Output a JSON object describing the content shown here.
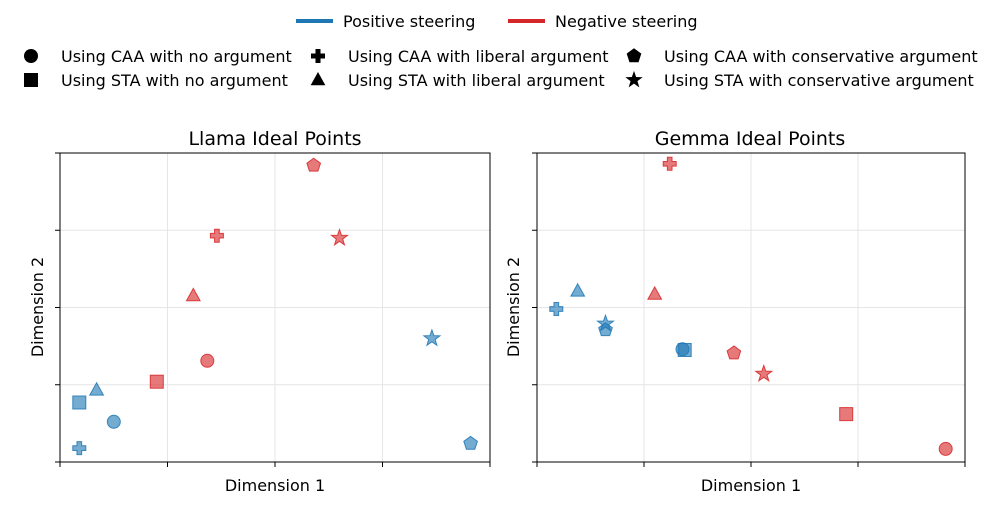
{
  "legend": {
    "colors": [
      {
        "label": "Positive steering",
        "color": "#1f77b4"
      },
      {
        "label": "Negative steering",
        "color": "#d62728"
      }
    ],
    "markers": [
      {
        "label": "Using CAA with no argument",
        "marker": "circle"
      },
      {
        "label": "Using CAA with liberal argument",
        "marker": "plus"
      },
      {
        "label": "Using CAA with conservative argument",
        "marker": "pentagon"
      },
      {
        "label": "Using STA with no argument",
        "marker": "square"
      },
      {
        "label": "Using STA with liberal argument",
        "marker": "triangle"
      },
      {
        "label": "Using STA with conservative argument",
        "marker": "star"
      }
    ]
  },
  "chart_data": [
    {
      "type": "scatter",
      "title": "Llama Ideal Points",
      "xlabel": "Dimension 1",
      "ylabel": "Dimension 2",
      "xlim": [
        0,
        4
      ],
      "ylim": [
        0,
        4
      ],
      "grid": true,
      "show_tick_labels": false,
      "points": [
        {
          "method": "CAA",
          "argument": "none",
          "steering": "positive",
          "x": 0.5,
          "y": 0.52
        },
        {
          "method": "CAA",
          "argument": "liberal",
          "steering": "positive",
          "x": 0.18,
          "y": 0.18
        },
        {
          "method": "CAA",
          "argument": "conservative",
          "steering": "positive",
          "x": 3.82,
          "y": 0.24
        },
        {
          "method": "STA",
          "argument": "none",
          "steering": "positive",
          "x": 0.18,
          "y": 0.77
        },
        {
          "method": "STA",
          "argument": "liberal",
          "steering": "positive",
          "x": 0.34,
          "y": 0.93
        },
        {
          "method": "STA",
          "argument": "conservative",
          "steering": "positive",
          "x": 3.46,
          "y": 1.6
        },
        {
          "method": "CAA",
          "argument": "none",
          "steering": "negative",
          "x": 1.37,
          "y": 1.31
        },
        {
          "method": "CAA",
          "argument": "liberal",
          "steering": "negative",
          "x": 1.46,
          "y": 2.93
        },
        {
          "method": "CAA",
          "argument": "conservative",
          "steering": "negative",
          "x": 2.36,
          "y": 3.84
        },
        {
          "method": "STA",
          "argument": "none",
          "steering": "negative",
          "x": 0.9,
          "y": 1.04
        },
        {
          "method": "STA",
          "argument": "liberal",
          "steering": "negative",
          "x": 1.24,
          "y": 2.15
        },
        {
          "method": "STA",
          "argument": "conservative",
          "steering": "negative",
          "x": 2.6,
          "y": 2.9
        }
      ]
    },
    {
      "type": "scatter",
      "title": "Gemma Ideal Points",
      "xlabel": "Dimension 1",
      "ylabel": "Dimension 2",
      "xlim": [
        0,
        4
      ],
      "ylim": [
        0,
        4
      ],
      "grid": true,
      "show_tick_labels": false,
      "points": [
        {
          "method": "CAA",
          "argument": "none",
          "steering": "positive",
          "x": 1.36,
          "y": 1.46
        },
        {
          "method": "CAA",
          "argument": "liberal",
          "steering": "positive",
          "x": 0.18,
          "y": 1.98
        },
        {
          "method": "CAA",
          "argument": "conservative",
          "steering": "positive",
          "x": 0.64,
          "y": 1.71
        },
        {
          "method": "STA",
          "argument": "none",
          "steering": "positive",
          "x": 1.38,
          "y": 1.45
        },
        {
          "method": "STA",
          "argument": "liberal",
          "steering": "positive",
          "x": 0.38,
          "y": 2.21
        },
        {
          "method": "STA",
          "argument": "conservative",
          "steering": "positive",
          "x": 0.64,
          "y": 1.79
        },
        {
          "method": "CAA",
          "argument": "none",
          "steering": "negative",
          "x": 3.82,
          "y": 0.17
        },
        {
          "method": "CAA",
          "argument": "liberal",
          "steering": "negative",
          "x": 1.24,
          "y": 3.86
        },
        {
          "method": "CAA",
          "argument": "conservative",
          "steering": "negative",
          "x": 1.84,
          "y": 1.41
        },
        {
          "method": "STA",
          "argument": "none",
          "steering": "negative",
          "x": 2.89,
          "y": 0.62
        },
        {
          "method": "STA",
          "argument": "liberal",
          "steering": "negative",
          "x": 1.1,
          "y": 2.17
        },
        {
          "method": "STA",
          "argument": "conservative",
          "steering": "negative",
          "x": 2.12,
          "y": 1.14
        }
      ]
    }
  ]
}
